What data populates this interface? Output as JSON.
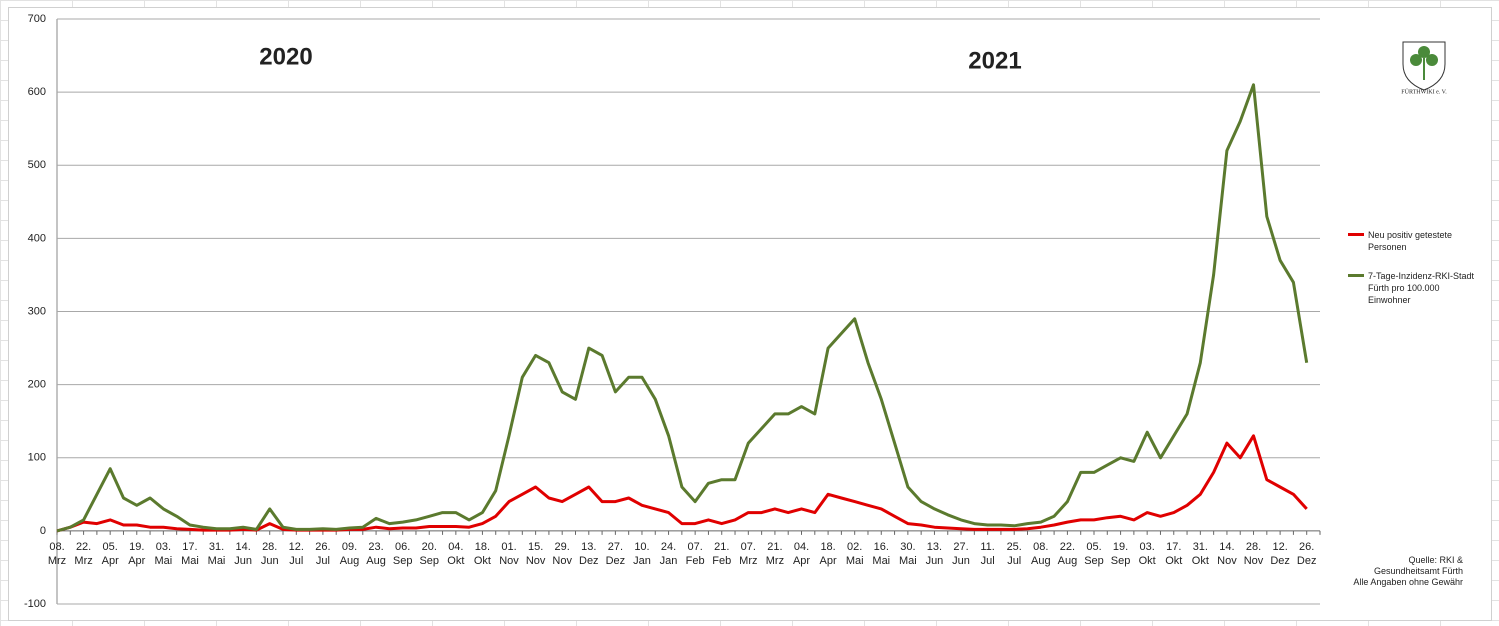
{
  "chart_data": {
    "type": "line",
    "annotations": [
      "2020",
      "2021"
    ],
    "logo_text": "FÜRTHWIKI e. V.",
    "source": [
      "Quelle: RKI &",
      "Gesundheitsamt Fürth",
      "Alle Angaben ohne Gewähr"
    ],
    "categories": [
      "08. Mrz",
      null,
      "22. Mrz",
      null,
      "05. Apr",
      null,
      "19. Apr",
      null,
      "03. Mai",
      null,
      "17. Mai",
      null,
      "31. Mai",
      null,
      "14. Jun",
      null,
      "28. Jun",
      null,
      "12. Jul",
      null,
      "26. Jul",
      null,
      "09. Aug",
      null,
      "23. Aug",
      null,
      "06. Sep",
      null,
      "20. Sep",
      null,
      "04. Okt",
      null,
      "18. Okt",
      null,
      "01. Nov",
      null,
      "15. Nov",
      null,
      "29. Nov",
      null,
      "13. Dez",
      null,
      "27. Dez",
      null,
      "10. Jan",
      null,
      "24. Jan",
      null,
      "07. Feb",
      null,
      "21. Feb",
      null,
      "07. Mrz",
      null,
      "21. Mrz",
      null,
      "04. Apr",
      null,
      "18. Apr",
      null,
      "02. Mai",
      null,
      "16. Mai",
      null,
      "30. Mai",
      null,
      "13. Jun",
      null,
      "27. Jun",
      null,
      "11. Jul",
      null,
      "25. Jul",
      null,
      "08. Aug",
      null,
      "22. Aug",
      null,
      "05. Sep",
      null,
      "19. Sep",
      null,
      "03. Okt",
      null,
      "17. Okt",
      null,
      "31. Okt",
      null,
      "14. Nov",
      null,
      "28. Nov",
      null,
      "12. Dez",
      null,
      "26. Dez",
      null
    ],
    "series": [
      {
        "name": "Neu positiv getestete Personen",
        "color": "#e00000",
        "values": [
          0,
          5,
          12,
          10,
          15,
          8,
          8,
          5,
          5,
          3,
          2,
          1,
          1,
          1,
          2,
          1,
          10,
          2,
          1,
          1,
          1,
          1,
          2,
          2,
          5,
          3,
          4,
          4,
          6,
          6,
          6,
          5,
          10,
          20,
          40,
          50,
          60,
          45,
          40,
          50,
          60,
          40,
          40,
          45,
          35,
          30,
          25,
          10,
          10,
          15,
          10,
          15,
          25,
          25,
          30,
          25,
          30,
          25,
          50,
          45,
          40,
          35,
          30,
          20,
          10,
          8,
          5,
          4,
          3,
          2,
          2,
          2,
          2,
          3,
          5,
          8,
          12,
          15,
          15,
          18,
          20,
          15,
          25,
          20,
          25,
          35,
          50,
          80,
          120,
          100,
          130,
          70,
          60,
          50,
          30,
          null
        ]
      },
      {
        "name": "7-Tage-Inzidenz-RKI-Stadt Fürth pro 100.000 Einwohner",
        "color": "#5b7a2e",
        "values": [
          0,
          5,
          15,
          50,
          85,
          45,
          35,
          45,
          30,
          20,
          8,
          5,
          3,
          3,
          5,
          2,
          30,
          5,
          2,
          2,
          3,
          2,
          4,
          5,
          17,
          10,
          12,
          15,
          20,
          25,
          25,
          15,
          25,
          55,
          130,
          210,
          240,
          230,
          190,
          180,
          250,
          240,
          190,
          210,
          210,
          180,
          130,
          60,
          40,
          65,
          70,
          70,
          120,
          140,
          160,
          160,
          170,
          160,
          250,
          270,
          290,
          230,
          180,
          120,
          60,
          40,
          30,
          22,
          15,
          10,
          8,
          8,
          7,
          10,
          12,
          20,
          40,
          80,
          80,
          90,
          100,
          95,
          135,
          100,
          130,
          160,
          230,
          350,
          520,
          560,
          610,
          430,
          370,
          340,
          230,
          null
        ]
      }
    ],
    "ylim": [
      -100,
      700
    ],
    "yticks": [
      -100,
      0,
      100,
      200,
      300,
      400,
      500,
      600,
      700
    ],
    "grid": true
  }
}
